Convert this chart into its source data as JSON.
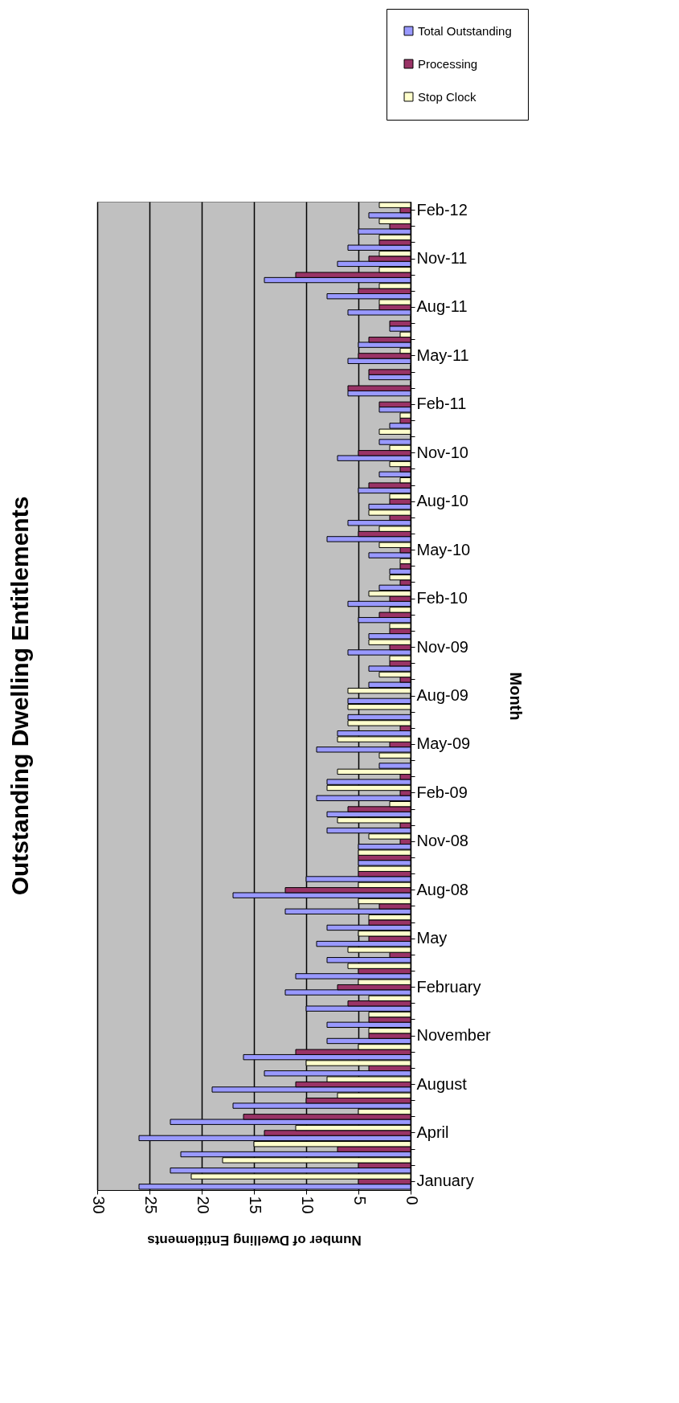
{
  "chart_data": {
    "type": "bar",
    "orientation": "horizontal",
    "title": "Outstanding Dwelling Entitlements",
    "xlabel": "Number of Dwelling Entitlements",
    "ylabel": "Month",
    "categories": [
      "Feb-12",
      null,
      null,
      "Nov-11",
      null,
      null,
      "Aug-11",
      null,
      null,
      "May-11",
      null,
      null,
      "Feb-11",
      null,
      null,
      "Nov-10",
      null,
      null,
      "Aug-10",
      null,
      null,
      "May-10",
      null,
      null,
      "Feb-10",
      null,
      null,
      "Nov-09",
      null,
      null,
      "Aug-09",
      null,
      null,
      "May-09",
      null,
      null,
      "Feb-09",
      null,
      null,
      "Nov-08",
      null,
      null,
      "Aug-08",
      null,
      null,
      "May",
      null,
      null,
      "February",
      null,
      null,
      "November",
      null,
      null,
      "August",
      null,
      null,
      "April",
      null,
      null,
      "January"
    ],
    "series": [
      {
        "name": "Total Outstanding",
        "color": "#9999ff",
        "values": [
          4,
          5,
          6,
          7,
          14,
          8,
          6,
          2,
          5,
          6,
          4,
          6,
          3,
          2,
          3,
          7,
          3,
          5,
          4,
          6,
          8,
          4,
          2,
          3,
          6,
          5,
          4,
          6,
          4,
          4,
          6,
          6,
          7,
          9,
          3,
          8,
          9,
          8,
          8,
          5,
          5,
          10,
          17,
          12,
          8,
          9,
          8,
          11,
          12,
          10,
          8,
          8,
          16,
          14,
          19,
          17,
          23,
          26,
          22,
          23,
          26
        ]
      },
      {
        "name": "Processing",
        "color": "#993366",
        "values": [
          1,
          2,
          3,
          4,
          11,
          5,
          3,
          2,
          4,
          5,
          4,
          6,
          3,
          1,
          0,
          5,
          1,
          4,
          2,
          2,
          5,
          1,
          1,
          1,
          2,
          3,
          2,
          2,
          2,
          1,
          0,
          0,
          1,
          2,
          0,
          1,
          1,
          6,
          1,
          1,
          5,
          5,
          12,
          3,
          4,
          4,
          2,
          5,
          7,
          6,
          4,
          4,
          11,
          4,
          11,
          10,
          16,
          14,
          7,
          5,
          5
        ]
      },
      {
        "name": "Stop Clock",
        "color": "#ffffcc",
        "values": [
          3,
          3,
          3,
          3,
          3,
          3,
          3,
          0,
          1,
          1,
          0,
          0,
          0,
          1,
          3,
          2,
          2,
          1,
          2,
          4,
          3,
          3,
          1,
          2,
          4,
          2,
          2,
          4,
          2,
          3,
          6,
          6,
          6,
          7,
          3,
          7,
          8,
          2,
          7,
          4,
          5,
          5,
          5,
          5,
          4,
          5,
          6,
          6,
          5,
          4,
          4,
          4,
          5,
          10,
          8,
          7,
          5,
          11,
          15,
          18,
          21
        ]
      }
    ],
    "xlim": [
      30,
      0
    ],
    "xticks": [
      0,
      5,
      10,
      15,
      20,
      25,
      30
    ],
    "grid": "x",
    "legend": "top right"
  }
}
